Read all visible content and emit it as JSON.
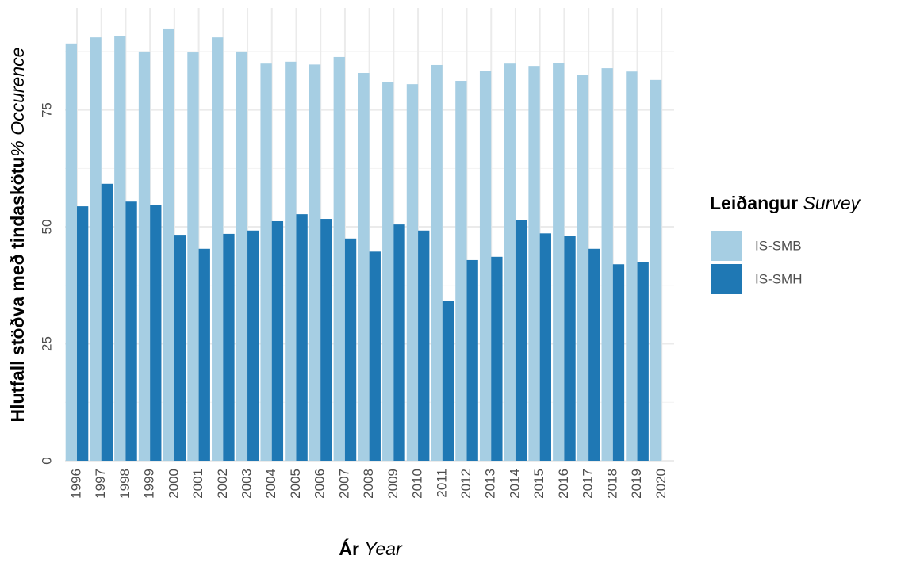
{
  "chart_data": {
    "type": "bar",
    "x_label": {
      "bold": "Ár",
      "italic": "Year"
    },
    "y_label": {
      "bold": "Hlutfall stöðva með tindaskötu",
      "italic": "% Occurence"
    },
    "legend_title": {
      "bold": "Leiðangur",
      "italic": "Survey"
    },
    "categories": [
      "1996",
      "1997",
      "1998",
      "1999",
      "2000",
      "2001",
      "2002",
      "2003",
      "2004",
      "2005",
      "2006",
      "2007",
      "2008",
      "2009",
      "2010",
      "2011",
      "2012",
      "2013",
      "2014",
      "2015",
      "2016",
      "2017",
      "2018",
      "2019",
      "2020"
    ],
    "series": [
      {
        "name": "IS-SMB",
        "color": "#a6cee3",
        "values": [
          89.2,
          90.5,
          90.8,
          87.5,
          92.4,
          87.3,
          90.5,
          87.5,
          84.9,
          85.3,
          84.7,
          86.3,
          82.9,
          81.0,
          80.5,
          84.6,
          81.2,
          83.4,
          84.9,
          84.4,
          85.1,
          82.4,
          83.9,
          83.2,
          81.4
        ]
      },
      {
        "name": "IS-SMH",
        "color": "#1f78b4",
        "values": [
          54.4,
          59.2,
          55.4,
          54.6,
          48.3,
          45.3,
          48.5,
          49.2,
          51.2,
          52.7,
          51.7,
          47.5,
          44.7,
          50.5,
          49.2,
          34.2,
          42.9,
          43.6,
          51.5,
          48.6,
          48.0,
          45.3,
          42.0,
          42.5,
          null
        ]
      }
    ],
    "ylim": [
      0,
      96.8
    ],
    "yticks": [
      0,
      25,
      50,
      75
    ],
    "minor_yticks": [
      12.5,
      37.5,
      62.5,
      87.5
    ],
    "grid": true,
    "legend_position": "right"
  }
}
